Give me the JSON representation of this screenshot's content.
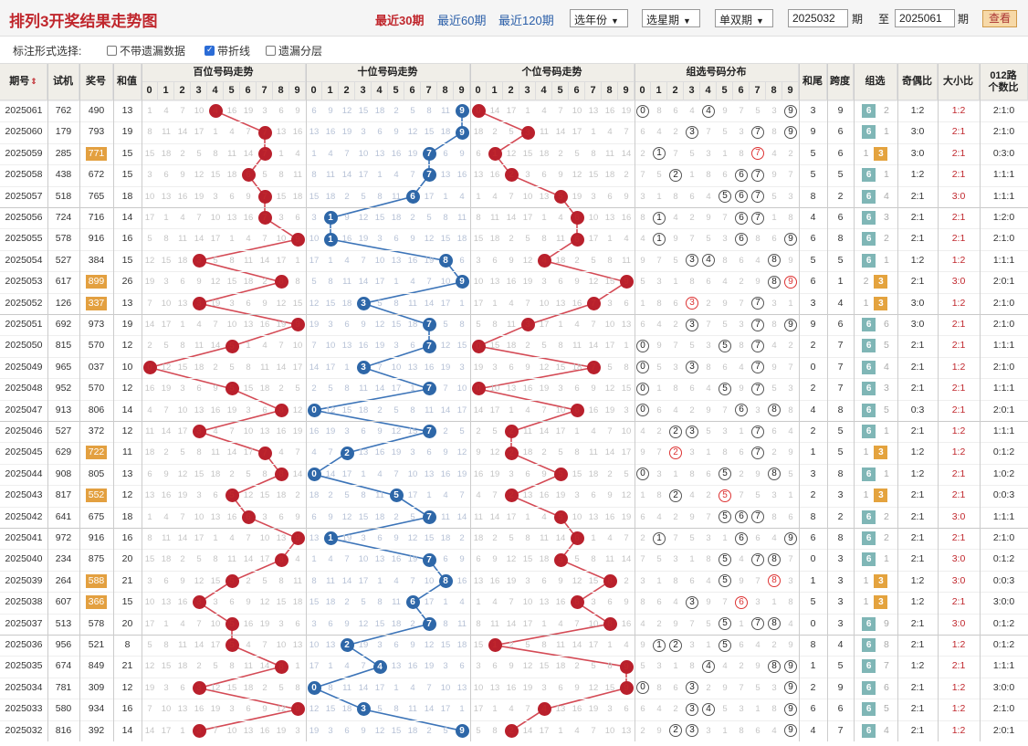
{
  "header": {
    "title": "排列3开奖结果走势图",
    "periods": [
      "最近30期",
      "最近60期",
      "最近120期"
    ],
    "active_period": 0,
    "year_select": "选年份",
    "week_select": "选星期",
    "parity_select": "单双期",
    "from_issue": "2025032",
    "issue_label": "期",
    "to_label": "至",
    "to_issue": "2025061",
    "to_issue_label": "期",
    "view_button": "查看"
  },
  "options": {
    "label": "标注形式选择:",
    "items": [
      {
        "label": "不带遗漏数据",
        "checked": false
      },
      {
        "label": "带折线",
        "checked": true
      },
      {
        "label": "遗漏分层",
        "checked": false
      }
    ]
  },
  "columns": {
    "issue": "期号",
    "sort_icon": "sort-arrows-icon",
    "trial": "试机",
    "prize": "奖号",
    "sum": "和值",
    "hundreds": "百位号码走势",
    "tens": "十位号码走势",
    "units": "个位号码走势",
    "group": "组选号码分布",
    "tail": "和尾",
    "span": "跨度",
    "grp": "组选",
    "parity": "奇偶比",
    "size": "大小比",
    "route_a": "012路",
    "route_b": "个数比",
    "digits": [
      "0",
      "1",
      "2",
      "3",
      "4",
      "5",
      "6",
      "7",
      "8",
      "9"
    ]
  },
  "colors": {
    "red": "#b9202c",
    "blue": "#2e67a8",
    "highlight": "#e3a040",
    "header_bg": "#f0eee8"
  },
  "rows": [
    {
      "issue": "2025061",
      "trial": "762",
      "prize": "490",
      "sum": "13",
      "tail": "3",
      "span": "9",
      "grp": "6",
      "grp_alt": "2",
      "parity": "1:2",
      "size": "1:2",
      "route": "2:1:0",
      "hl": false
    },
    {
      "issue": "2025060",
      "trial": "179",
      "prize": "793",
      "sum": "19",
      "tail": "9",
      "span": "6",
      "grp": "6",
      "grp_alt": "1",
      "parity": "3:0",
      "size": "2:1",
      "route": "2:1:0",
      "hl": false
    },
    {
      "issue": "2025059",
      "trial": "285",
      "prize": "771",
      "sum": "15",
      "tail": "5",
      "span": "6",
      "grp": "3",
      "grp_alt": "1",
      "parity": "3:0",
      "size": "2:1",
      "route": "0:3:0",
      "hl": true
    },
    {
      "issue": "2025058",
      "trial": "438",
      "prize": "672",
      "sum": "15",
      "tail": "5",
      "span": "5",
      "grp": "6",
      "grp_alt": "1",
      "parity": "1:2",
      "size": "2:1",
      "route": "1:1:1",
      "hl": false
    },
    {
      "issue": "2025057",
      "trial": "518",
      "prize": "765",
      "sum": "18",
      "tail": "8",
      "span": "2",
      "grp": "6",
      "grp_alt": "4",
      "parity": "2:1",
      "size": "3:0",
      "route": "1:1:1",
      "hl": false
    },
    {
      "issue": "2025056",
      "trial": "724",
      "prize": "716",
      "sum": "14",
      "tail": "4",
      "span": "6",
      "grp": "6",
      "grp_alt": "3",
      "parity": "2:1",
      "size": "2:1",
      "route": "1:2:0",
      "hl": false
    },
    {
      "issue": "2025055",
      "trial": "578",
      "prize": "916",
      "sum": "16",
      "tail": "6",
      "span": "8",
      "grp": "6",
      "grp_alt": "2",
      "parity": "2:1",
      "size": "2:1",
      "route": "2:1:0",
      "hl": false
    },
    {
      "issue": "2025054",
      "trial": "527",
      "prize": "384",
      "sum": "15",
      "tail": "5",
      "span": "5",
      "grp": "6",
      "grp_alt": "1",
      "parity": "1:2",
      "size": "1:2",
      "route": "1:1:1",
      "hl": false
    },
    {
      "issue": "2025053",
      "trial": "617",
      "prize": "899",
      "sum": "26",
      "tail": "6",
      "span": "1",
      "grp": "3",
      "grp_alt": "2",
      "parity": "2:1",
      "size": "3:0",
      "route": "2:0:1",
      "hl": true
    },
    {
      "issue": "2025052",
      "trial": "126",
      "prize": "337",
      "sum": "13",
      "tail": "3",
      "span": "4",
      "grp": "3",
      "grp_alt": "1",
      "parity": "3:0",
      "size": "1:2",
      "route": "2:1:0",
      "hl": true
    },
    {
      "issue": "2025051",
      "trial": "692",
      "prize": "973",
      "sum": "19",
      "tail": "9",
      "span": "6",
      "grp": "6",
      "grp_alt": "6",
      "parity": "3:0",
      "size": "2:1",
      "route": "2:1:0",
      "hl": false
    },
    {
      "issue": "2025050",
      "trial": "815",
      "prize": "570",
      "sum": "12",
      "tail": "2",
      "span": "7",
      "grp": "6",
      "grp_alt": "5",
      "parity": "2:1",
      "size": "2:1",
      "route": "1:1:1",
      "hl": false
    },
    {
      "issue": "2025049",
      "trial": "965",
      "prize": "037",
      "sum": "10",
      "tail": "0",
      "span": "7",
      "grp": "6",
      "grp_alt": "4",
      "parity": "2:1",
      "size": "1:2",
      "route": "2:1:0",
      "hl": false
    },
    {
      "issue": "2025048",
      "trial": "952",
      "prize": "570",
      "sum": "12",
      "tail": "2",
      "span": "7",
      "grp": "6",
      "grp_alt": "3",
      "parity": "2:1",
      "size": "2:1",
      "route": "1:1:1",
      "hl": false
    },
    {
      "issue": "2025047",
      "trial": "913",
      "prize": "806",
      "sum": "14",
      "tail": "4",
      "span": "8",
      "grp": "6",
      "grp_alt": "5",
      "parity": "0:3",
      "size": "2:1",
      "route": "2:0:1",
      "hl": false
    },
    {
      "issue": "2025046",
      "trial": "527",
      "prize": "372",
      "sum": "12",
      "tail": "2",
      "span": "5",
      "grp": "6",
      "grp_alt": "1",
      "parity": "2:1",
      "size": "1:2",
      "route": "1:1:1",
      "hl": false
    },
    {
      "issue": "2025045",
      "trial": "629",
      "prize": "722",
      "sum": "11",
      "tail": "1",
      "span": "5",
      "grp": "3",
      "grp_alt": "1",
      "parity": "1:2",
      "size": "1:2",
      "route": "0:1:2",
      "hl": true
    },
    {
      "issue": "2025044",
      "trial": "908",
      "prize": "805",
      "sum": "13",
      "tail": "3",
      "span": "8",
      "grp": "6",
      "grp_alt": "1",
      "parity": "1:2",
      "size": "2:1",
      "route": "1:0:2",
      "hl": false
    },
    {
      "issue": "2025043",
      "trial": "817",
      "prize": "552",
      "sum": "12",
      "tail": "2",
      "span": "3",
      "grp": "3",
      "grp_alt": "1",
      "parity": "2:1",
      "size": "2:1",
      "route": "0:0:3",
      "hl": true
    },
    {
      "issue": "2025042",
      "trial": "641",
      "prize": "675",
      "sum": "18",
      "tail": "8",
      "span": "2",
      "grp": "6",
      "grp_alt": "2",
      "parity": "2:1",
      "size": "3:0",
      "route": "1:1:1",
      "hl": false
    },
    {
      "issue": "2025041",
      "trial": "972",
      "prize": "916",
      "sum": "16",
      "tail": "6",
      "span": "8",
      "grp": "6",
      "grp_alt": "2",
      "parity": "2:1",
      "size": "2:1",
      "route": "2:1:0",
      "hl": false
    },
    {
      "issue": "2025040",
      "trial": "234",
      "prize": "875",
      "sum": "20",
      "tail": "0",
      "span": "3",
      "grp": "6",
      "grp_alt": "1",
      "parity": "2:1",
      "size": "3:0",
      "route": "0:1:2",
      "hl": false
    },
    {
      "issue": "2025039",
      "trial": "264",
      "prize": "588",
      "sum": "21",
      "tail": "1",
      "span": "3",
      "grp": "3",
      "grp_alt": "1",
      "parity": "1:2",
      "size": "3:0",
      "route": "0:0:3",
      "hl": true
    },
    {
      "issue": "2025038",
      "trial": "607",
      "prize": "366",
      "sum": "15",
      "tail": "5",
      "span": "3",
      "grp": "3",
      "grp_alt": "1",
      "parity": "1:2",
      "size": "2:1",
      "route": "3:0:0",
      "hl": true
    },
    {
      "issue": "2025037",
      "trial": "513",
      "prize": "578",
      "sum": "20",
      "tail": "0",
      "span": "3",
      "grp": "6",
      "grp_alt": "9",
      "parity": "2:1",
      "size": "3:0",
      "route": "0:1:2",
      "hl": false
    },
    {
      "issue": "2025036",
      "trial": "956",
      "prize": "521",
      "sum": "8",
      "tail": "8",
      "span": "4",
      "grp": "6",
      "grp_alt": "8",
      "parity": "2:1",
      "size": "1:2",
      "route": "0:1:2",
      "hl": false
    },
    {
      "issue": "2025035",
      "trial": "674",
      "prize": "849",
      "sum": "21",
      "tail": "1",
      "span": "5",
      "grp": "6",
      "grp_alt": "7",
      "parity": "1:2",
      "size": "2:1",
      "route": "1:1:1",
      "hl": false
    },
    {
      "issue": "2025034",
      "trial": "781",
      "prize": "309",
      "sum": "12",
      "tail": "2",
      "span": "9",
      "grp": "6",
      "grp_alt": "6",
      "parity": "2:1",
      "size": "1:2",
      "route": "3:0:0",
      "hl": false
    },
    {
      "issue": "2025033",
      "trial": "580",
      "prize": "934",
      "sum": "16",
      "tail": "6",
      "span": "6",
      "grp": "6",
      "grp_alt": "5",
      "parity": "2:1",
      "size": "1:2",
      "route": "2:1:0",
      "hl": false
    },
    {
      "issue": "2025032",
      "trial": "816",
      "prize": "392",
      "sum": "14",
      "tail": "4",
      "span": "7",
      "grp": "6",
      "grp_alt": "4",
      "parity": "2:1",
      "size": "1:2",
      "route": "2:0:1",
      "hl": false
    }
  ]
}
